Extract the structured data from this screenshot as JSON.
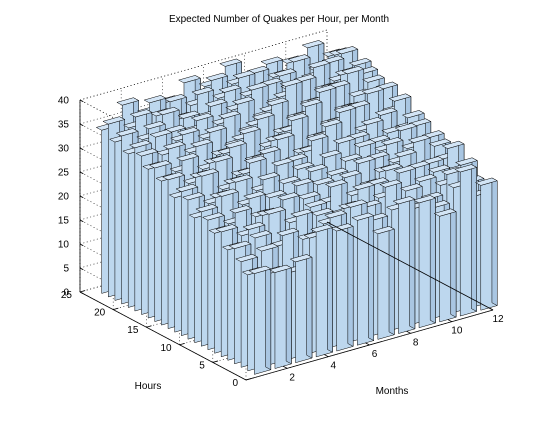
{
  "chart_data": {
    "type": "bar3",
    "title": "Expected Number of Quakes per Hour, per Month",
    "xlabel": "Months",
    "ylabel": "Hours",
    "x_ticks": [
      "2",
      "4",
      "6",
      "8",
      "10",
      "12"
    ],
    "y_ticks": [
      "0",
      "5",
      "10",
      "15",
      "20",
      "25"
    ],
    "z_ticks": [
      "0",
      "5",
      "10",
      "15",
      "20",
      "25",
      "30",
      "35",
      "40"
    ],
    "xlim": [
      0,
      12
    ],
    "ylim": [
      0,
      25
    ],
    "zlim": [
      0,
      40
    ],
    "grid": true,
    "bar_color": "#bdd7ee",
    "edge_color": "#000000",
    "months": [
      1,
      2,
      3,
      4,
      5,
      6,
      7,
      8,
      9,
      10,
      11,
      12
    ],
    "hours": [
      1,
      2,
      3,
      4,
      5,
      6,
      7,
      8,
      9,
      10,
      11,
      12,
      13,
      14,
      15,
      16,
      17,
      18,
      19,
      20,
      21,
      22,
      23,
      24
    ],
    "values": [
      [
        21,
        20,
        21,
        26,
        25,
        26,
        22,
        27,
        26,
        22,
        30,
        26
      ],
      [
        20,
        19,
        18,
        24,
        27,
        28,
        24,
        25,
        24,
        23,
        26,
        23
      ],
      [
        22,
        23,
        25,
        23,
        25,
        27,
        26,
        29,
        27,
        24,
        28,
        25
      ],
      [
        24,
        25,
        22,
        27,
        26,
        25,
        29,
        26,
        30,
        27,
        25,
        28
      ],
      [
        23,
        26,
        28,
        25,
        27,
        30,
        27,
        28,
        25,
        29,
        27,
        26
      ],
      [
        26,
        24,
        27,
        29,
        28,
        26,
        30,
        27,
        29,
        26,
        28,
        30
      ],
      [
        25,
        28,
        26,
        24,
        30,
        29,
        27,
        31,
        28,
        30,
        26,
        27
      ],
      [
        27,
        25,
        29,
        28,
        26,
        31,
        29,
        27,
        30,
        28,
        31,
        29
      ],
      [
        28,
        30,
        27,
        31,
        29,
        27,
        32,
        30,
        28,
        31,
        29,
        30
      ],
      [
        26,
        29,
        31,
        28,
        32,
        30,
        28,
        33,
        31,
        29,
        32,
        28
      ],
      [
        29,
        27,
        30,
        33,
        28,
        31,
        34,
        29,
        32,
        30,
        28,
        31
      ],
      [
        30,
        32,
        28,
        30,
        33,
        29,
        31,
        35,
        29,
        33,
        30,
        32
      ],
      [
        28,
        31,
        33,
        29,
        31,
        34,
        30,
        32,
        36,
        31,
        33,
        29
      ],
      [
        31,
        29,
        32,
        34,
        30,
        33,
        36,
        31,
        33,
        35,
        30,
        34
      ],
      [
        30,
        33,
        30,
        32,
        35,
        31,
        33,
        37,
        32,
        34,
        36,
        31
      ],
      [
        32,
        30,
        34,
        31,
        33,
        36,
        32,
        34,
        38,
        33,
        32,
        35
      ],
      [
        31,
        34,
        32,
        35,
        31,
        34,
        37,
        33,
        35,
        37,
        34,
        33
      ],
      [
        33,
        32,
        35,
        33,
        36,
        32,
        35,
        39,
        34,
        36,
        38,
        35
      ],
      [
        34,
        35,
        33,
        36,
        34,
        37,
        33,
        36,
        38,
        35,
        37,
        36
      ],
      [
        32,
        36,
        34,
        33,
        37,
        35,
        38,
        34,
        36,
        39,
        35,
        37
      ],
      [
        35,
        33,
        37,
        35,
        34,
        38,
        36,
        37,
        35,
        36,
        38,
        34
      ],
      [
        33,
        37,
        36,
        34,
        38,
        36,
        39,
        35,
        37,
        34,
        36,
        38
      ],
      [
        36,
        34,
        38,
        37,
        35,
        39,
        37,
        38,
        36,
        38,
        35,
        37
      ],
      [
        34,
        38,
        35,
        36,
        39,
        37,
        40,
        36,
        38,
        37,
        39,
        36
      ]
    ]
  }
}
